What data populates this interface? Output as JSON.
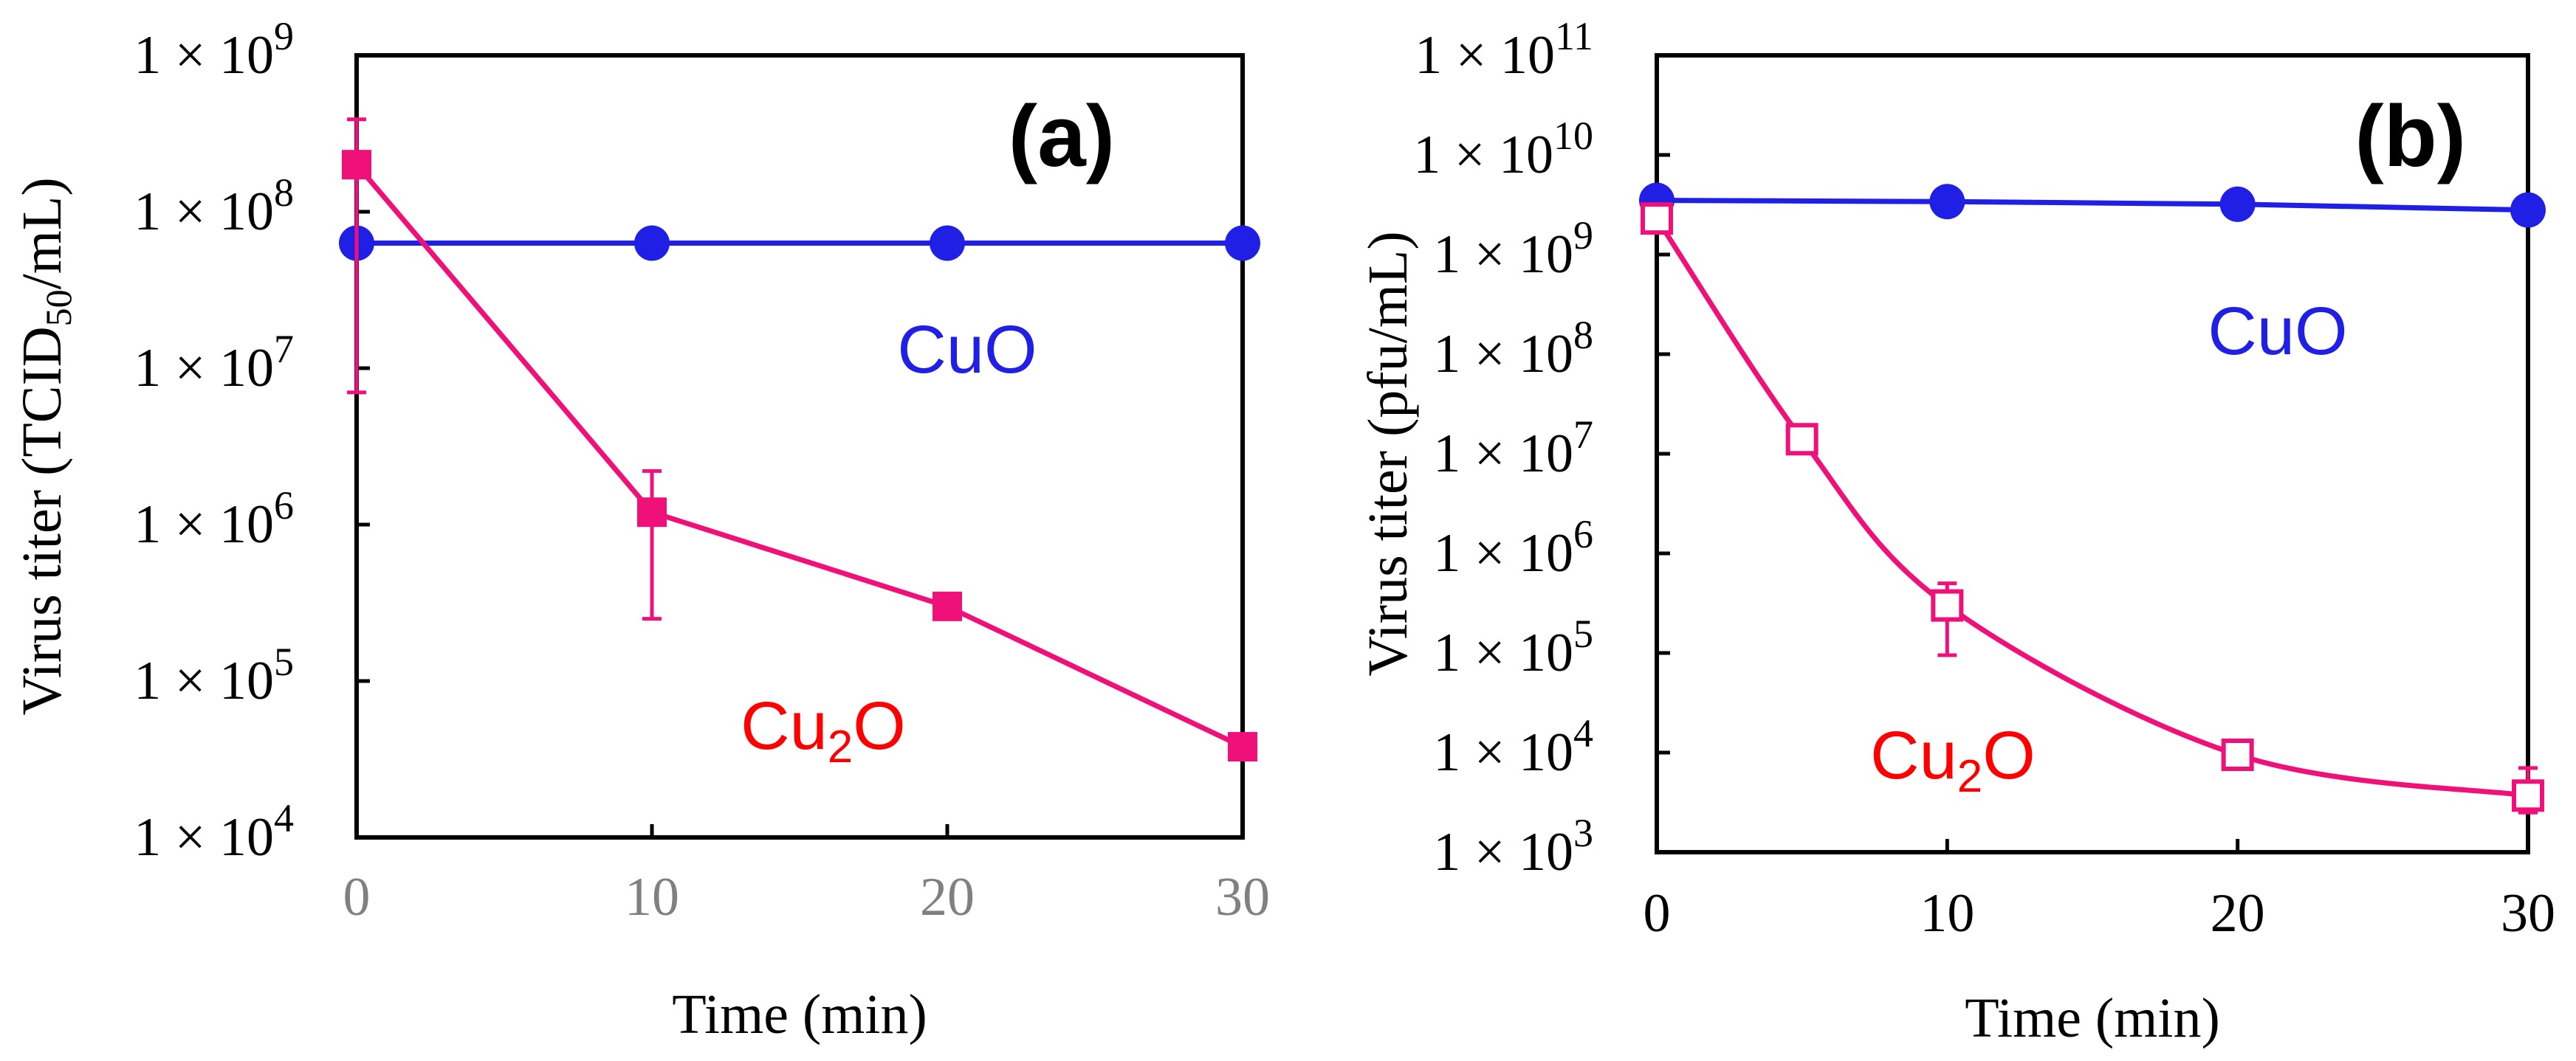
{
  "chart_data": [
    {
      "id": "a",
      "type": "line",
      "panel_label": "(a)",
      "title": "",
      "xlabel": "Time (min)",
      "ylabel_main": "Virus titer (TCID",
      "ylabel_sub": "50",
      "ylabel_tail": "/mL)",
      "yscale": "log",
      "xlim": [
        0,
        30
      ],
      "ylim": [
        10000,
        1000000000
      ],
      "x_ticks": [
        0,
        10,
        20,
        30
      ],
      "x_tick_labels": [
        "0",
        "10",
        "20",
        "30"
      ],
      "x_tick_color": "#808080",
      "y_ticks": [
        10000,
        100000,
        1000000,
        10000000,
        100000000,
        1000000000
      ],
      "y_tick_base": "1 × 10",
      "y_tick_exponents": [
        "4",
        "5",
        "6",
        "7",
        "8",
        "9"
      ],
      "series": [
        {
          "name": "CuO",
          "label_main": "CuO",
          "label_sub": "",
          "label_tail": "",
          "color": "#1f1fe6",
          "label_color": "#1f1fe6",
          "marker": "circle",
          "curve": "straight",
          "x": [
            0,
            10,
            20,
            30
          ],
          "y": [
            63000000,
            63000000,
            63000000,
            63000000
          ],
          "err_low": [
            58000000,
            58000000,
            58000000,
            58000000
          ],
          "err_high": [
            68000000,
            68000000,
            68000000,
            68000000
          ]
        },
        {
          "name": "Cu2O",
          "label_main": "Cu",
          "label_sub": "2",
          "label_tail": "O",
          "color": "#f0107a",
          "label_color": "#ff0000",
          "marker": "square",
          "curve": "straight",
          "x": [
            0,
            10,
            20,
            30
          ],
          "y": [
            200000000,
            1200000,
            300000,
            38000
          ],
          "err_low": [
            7000000,
            250000,
            280000,
            35000
          ],
          "err_high": [
            390000000,
            2200000,
            320000,
            41000
          ]
        }
      ]
    },
    {
      "id": "b",
      "type": "line",
      "panel_label": "(b)",
      "title": "",
      "xlabel": "Time (min)",
      "ylabel_main": "Virus titer (pfu/mL)",
      "ylabel_sub": "",
      "ylabel_tail": "",
      "yscale": "log",
      "xlim": [
        0,
        30
      ],
      "ylim": [
        1000,
        100000000000
      ],
      "x_ticks": [
        0,
        10,
        20,
        30
      ],
      "x_tick_labels": [
        "0",
        "10",
        "20",
        "30"
      ],
      "x_tick_color": "#000000",
      "y_ticks": [
        1000,
        10000,
        100000,
        1000000,
        10000000,
        100000000,
        1000000000,
        10000000000,
        100000000000
      ],
      "y_tick_base": "1 × 10",
      "y_tick_exponents": [
        "3",
        "4",
        "5",
        "6",
        "7",
        "8",
        "9",
        "10",
        "11"
      ],
      "series": [
        {
          "name": "CuO",
          "label_main": "CuO",
          "label_sub": "",
          "label_tail": "",
          "color": "#1f1fe6",
          "label_color": "#1f1fe6",
          "marker": "circle",
          "curve": "straight",
          "x": [
            0,
            10,
            20,
            30
          ],
          "y": [
            3500000000,
            3400000000,
            3200000000,
            2800000000
          ],
          "err_low": [
            3500000000,
            3400000000,
            3200000000,
            2800000000
          ],
          "err_high": [
            3500000000,
            3400000000,
            3200000000,
            2800000000
          ]
        },
        {
          "name": "Cu2O",
          "label_main": "Cu",
          "label_sub": "2",
          "label_tail": "O",
          "color": "#f0107a",
          "label_color": "#ff0000",
          "marker": "open-square",
          "curve": "smooth",
          "x": [
            0,
            5,
            10,
            20,
            30
          ],
          "y": [
            2300000000,
            14000000,
            300000,
            9500,
            3700
          ],
          "err_low": [
            1900000000,
            12000000,
            95000,
            7000,
            2500
          ],
          "err_high": [
            3000000000,
            16000000,
            500000,
            13000,
            7000
          ]
        }
      ]
    }
  ]
}
